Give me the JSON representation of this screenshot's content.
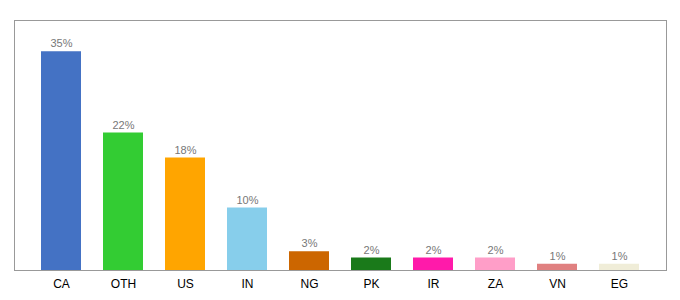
{
  "chart_data": {
    "type": "bar",
    "categories": [
      "CA",
      "OTH",
      "US",
      "IN",
      "NG",
      "PK",
      "IR",
      "ZA",
      "VN",
      "EG"
    ],
    "values": [
      35,
      22,
      18,
      10,
      3,
      2,
      2,
      2,
      1,
      1
    ],
    "value_labels": [
      "35%",
      "22%",
      "18%",
      "10%",
      "3%",
      "2%",
      "2%",
      "2%",
      "1%",
      "1%"
    ],
    "colors": [
      "#4472c4",
      "#33cc33",
      "#ffa500",
      "#87ceeb",
      "#cc6600",
      "#1a7a1a",
      "#ff1aaa",
      "#ff9ec8",
      "#e08080",
      "#f0edd8"
    ],
    "ylim": [
      0,
      40
    ],
    "grid": false,
    "data_labels": true,
    "tick_labels": "x"
  }
}
